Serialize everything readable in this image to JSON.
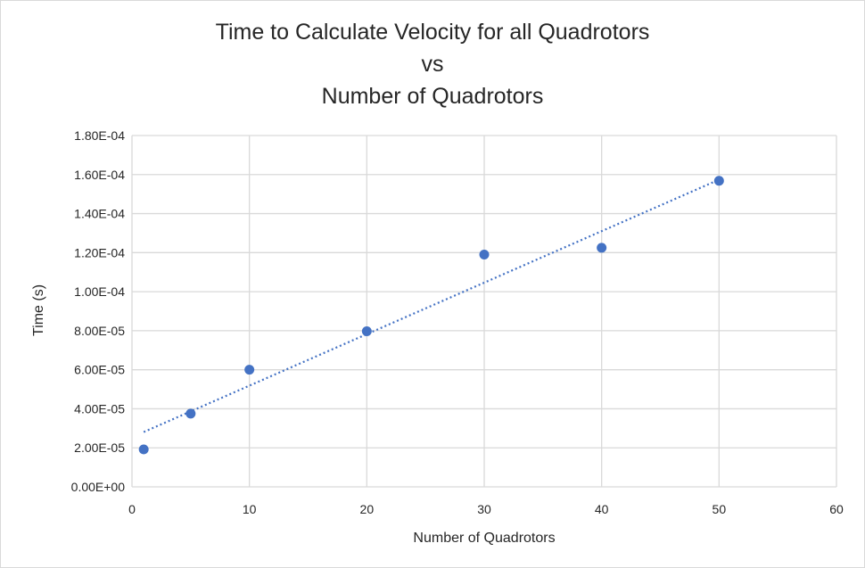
{
  "chart_data": {
    "type": "scatter",
    "title": [
      "Time to Calculate Velocity for all Quadrotors",
      "vs",
      "Number of Quadrotors"
    ],
    "xlabel": "Number of Quadrotors",
    "ylabel": "Time (s)",
    "xlim": [
      0,
      60
    ],
    "ylim": [
      0,
      0.00018
    ],
    "xticks": [
      "0",
      "10",
      "20",
      "30",
      "40",
      "50",
      "60"
    ],
    "yticks": [
      "0.00E+00",
      "2.00E-05",
      "4.00E-05",
      "6.00E-05",
      "8.00E-05",
      "1.00E-04",
      "1.20E-04",
      "1.40E-04",
      "1.60E-04",
      "1.80E-04"
    ],
    "grid": true,
    "series": [
      {
        "x": [
          1,
          5,
          10,
          20,
          30,
          40,
          50
        ],
        "y": [
          1.92e-05,
          3.75e-05,
          6e-05,
          7.97e-05,
          0.000119,
          0.0001225,
          0.0001568
        ],
        "color": "#4472c4"
      }
    ],
    "trendline": {
      "style": "dotted linear",
      "color": "#4472c4",
      "from": [
        1,
        2.81e-05
      ],
      "to": [
        50,
        0.0001574
      ]
    }
  }
}
